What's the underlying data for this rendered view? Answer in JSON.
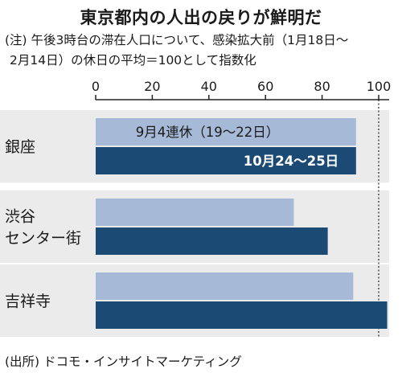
{
  "title": "東京都内の人出の戻りが鮮明だ",
  "note_line1": "(注) 午後3時台の滞在人口について、感染拡大前（1月18日～",
  "note_line2": "2月14日）の休日の平均＝100として指数化",
  "source": "(出所) ドコモ・インサイトマーケティング",
  "colors": {
    "series1": "#a6bad8",
    "series2": "#1b4a75",
    "band": "#ebebeb",
    "axis": "#222222"
  },
  "chart_data": {
    "type": "bar",
    "orientation": "horizontal",
    "title": "東京都内の人出の戻りが鮮明だ",
    "categories": [
      "銀座",
      "渋谷\nセンター街",
      "吉祥寺"
    ],
    "series": [
      {
        "name": "9月4連休（19～22日）",
        "values": [
          92,
          70,
          91
        ]
      },
      {
        "name": "10月24～25日",
        "values": [
          92,
          82,
          103
        ]
      }
    ],
    "xlim": [
      0,
      100
    ],
    "ticks": [
      0,
      20,
      40,
      60,
      80,
      100
    ],
    "reference_line": 100,
    "legend_placement": "inside-bars (top category)"
  }
}
